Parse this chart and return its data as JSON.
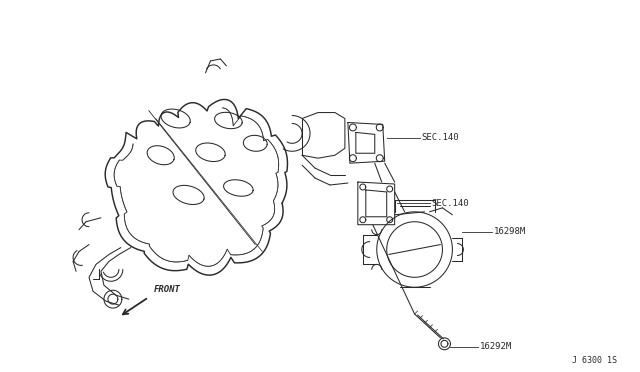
{
  "background_color": "#ffffff",
  "line_color": "#2a2a2a",
  "line_width": 0.75,
  "labels": {
    "sec140_top": "SEC.140",
    "sec140_mid": "SEC.140",
    "part_16298M": "16298M",
    "part_16292M": "16292M",
    "front_label": "FRONT",
    "diagram_id": "J 6300 1S"
  },
  "label_fontsize": 6.5,
  "front_fontsize": 6.5,
  "diagram_id_fontsize": 6
}
